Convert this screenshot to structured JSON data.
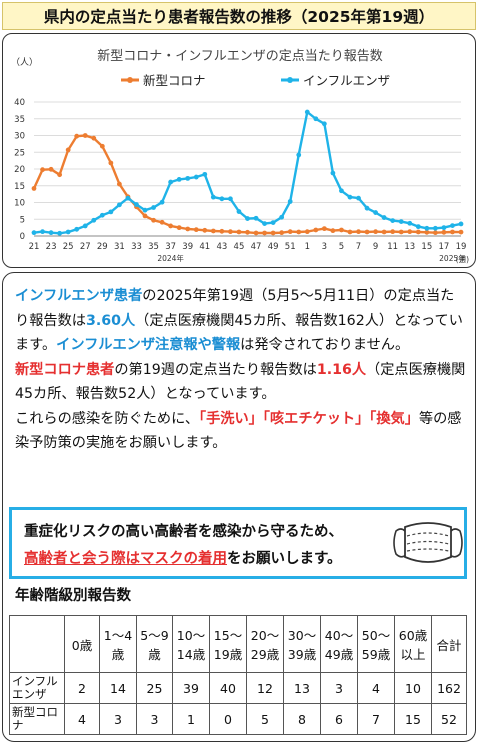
{
  "title": "県内の定点当たり患者報告数の推移（2025年第19週）",
  "chart_data": {
    "type": "line",
    "title": "新型コロナ・インフルエンザの定点当たり報告数",
    "ylabel": "（人）",
    "xunit": "(週)",
    "ylim": [
      0,
      40
    ],
    "yticks": [
      0,
      5,
      10,
      15,
      20,
      25,
      30,
      35,
      40
    ],
    "x": [
      21,
      22,
      23,
      24,
      25,
      26,
      27,
      28,
      29,
      30,
      31,
      32,
      33,
      34,
      35,
      36,
      37,
      38,
      39,
      40,
      41,
      42,
      43,
      44,
      45,
      46,
      47,
      48,
      49,
      50,
      51,
      52,
      1,
      2,
      3,
      4,
      5,
      6,
      7,
      8,
      9,
      10,
      11,
      12,
      13,
      14,
      15,
      16,
      17,
      18,
      19
    ],
    "xtick_labels": [
      "21",
      "23",
      "25",
      "27",
      "29",
      "31",
      "33",
      "35",
      "37",
      "39",
      "41",
      "43",
      "45",
      "47",
      "49",
      "51",
      "1",
      "3",
      "5",
      "7",
      "9",
      "11",
      "13",
      "15",
      "17",
      "19"
    ],
    "year_labels": [
      {
        "label": "2024年",
        "at_index": 16
      },
      {
        "label": "2025年",
        "at_index": 49
      }
    ],
    "series": [
      {
        "name": "新型コロナ",
        "color": "#ed7d31",
        "values": [
          14.2,
          19.8,
          19.9,
          18.3,
          25.7,
          29.8,
          30.0,
          29.2,
          26.8,
          21.8,
          15.5,
          11.7,
          8.7,
          6.0,
          4.7,
          4.1,
          3.0,
          2.5,
          2.1,
          1.9,
          1.7,
          1.5,
          1.4,
          1.3,
          1.2,
          1.1,
          0.9,
          0.9,
          0.9,
          1.0,
          1.3,
          1.2,
          1.3,
          1.8,
          2.2,
          1.6,
          1.8,
          1.2,
          1.3,
          1.2,
          1.3,
          1.2,
          1.3,
          1.2,
          1.3,
          1.2,
          1.1,
          1.0,
          1.1,
          1.2,
          1.16
        ]
      },
      {
        "name": "インフルエンザ",
        "color": "#1fb3e8",
        "values": [
          1.0,
          1.3,
          1.0,
          0.8,
          1.2,
          2.0,
          3.0,
          4.7,
          6.2,
          7.2,
          9.3,
          11.3,
          9.4,
          7.7,
          8.5,
          10.1,
          16.1,
          16.9,
          17.2,
          17.6,
          18.4,
          11.6,
          11.1,
          11.1,
          7.3,
          5.2,
          5.3,
          3.7,
          4.0,
          5.6,
          10.3,
          24.2,
          37.0,
          35.0,
          33.5,
          18.8,
          13.5,
          11.6,
          11.3,
          8.3,
          7.0,
          5.5,
          4.6,
          4.3,
          3.8,
          2.8,
          2.3,
          2.3,
          2.5,
          3.1,
          3.6
        ]
      }
    ]
  },
  "info": {
    "p1_a": "インフルエンザ患者",
    "p1_b": "の2025年第19週（5月5〜5月11日）の定点当たり報告数は",
    "p1_c": "3.60人",
    "p1_d": "（定点医療機関45カ所、報告数162人）となっています。",
    "p1_e": "インフルエンザ注意報や警報",
    "p1_f": "は発令されておりません。",
    "p2_a": "新型コロナ患者",
    "p2_b": "の第19週の定点当たり報告数は",
    "p2_c": "1.16人",
    "p2_d": "（定点医療機関45カ所、報告数52人）となっています。",
    "p3_a": "これらの感染を防ぐために、",
    "p3_b": "「手洗い」「咳エチケット」「換気」",
    "p3_c": "等の感染予防策の実施をお願いします。"
  },
  "notice": {
    "line1": "重症化リスクの高い高齢者を感染から守るため、",
    "line2_red": "高齢者と会う際はマスクの着用",
    "line2_rest": "をお願いします。"
  },
  "age_table": {
    "title": "年齢階級別報告数",
    "headers": [
      "0歳",
      "1〜4歳",
      "5〜9歳",
      "10〜14歳",
      "15〜19歳",
      "20〜29歳",
      "30〜39歳",
      "40〜49歳",
      "50〜59歳",
      "60歳以上",
      "合計"
    ],
    "rows": [
      {
        "label": "インフルエンザ",
        "values": [
          "2",
          "14",
          "25",
          "39",
          "40",
          "12",
          "13",
          "3",
          "4",
          "10",
          "162"
        ]
      },
      {
        "label": "新型コロナ",
        "values": [
          "4",
          "3",
          "3",
          "1",
          "0",
          "5",
          "8",
          "6",
          "7",
          "15",
          "52"
        ]
      }
    ]
  }
}
